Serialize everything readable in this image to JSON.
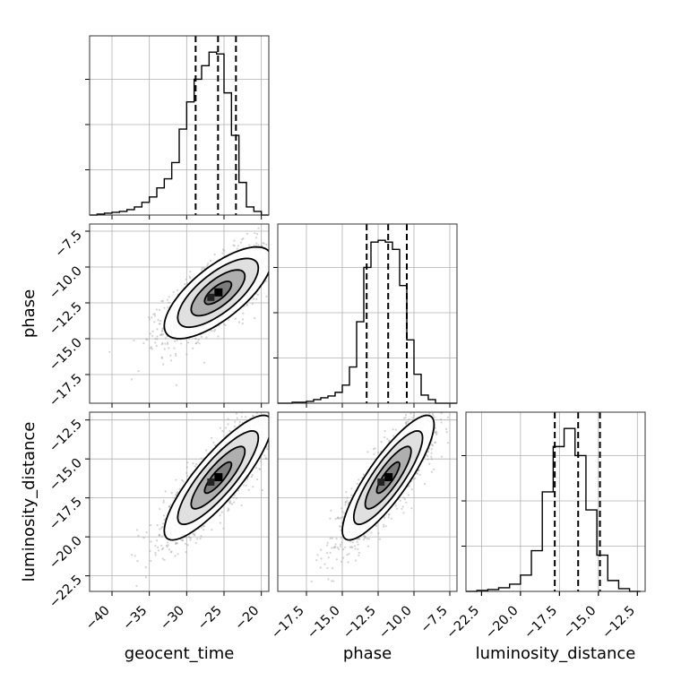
{
  "chart_data": {
    "type": "corner",
    "parameters": [
      {
        "name": "geocent_time",
        "range": [
          -43,
          -19
        ],
        "ticks": [
          -40,
          -35,
          -30,
          -25,
          -20
        ],
        "tick_labels": [
          "−40",
          "−35",
          "−30",
          "−25",
          "−20"
        ],
        "quantiles": [
          -28.8,
          -25.8,
          -23.4
        ],
        "hist_bins": [
          -43.0,
          -42.0,
          -41.0,
          -40.0,
          -39.0,
          -38.0,
          -37.0,
          -36.0,
          -35.0,
          -34.0,
          -33.0,
          -32.0,
          -31.0,
          -30.0,
          -29.0,
          -28.0,
          -27.0,
          -26.0,
          -25.0,
          -24.0,
          -23.0,
          -22.0,
          -21.0,
          -20.0,
          -19.0
        ],
        "hist_counts": [
          0,
          1,
          2,
          3,
          4,
          6,
          9,
          14,
          20,
          30,
          40,
          58,
          95,
          125,
          150,
          165,
          180,
          178,
          135,
          88,
          36,
          9,
          4,
          0
        ]
      },
      {
        "name": "phase",
        "range": [
          -19.5,
          -7.0
        ],
        "ticks": [
          -17.5,
          -15.0,
          -12.5,
          -10.0,
          -7.5
        ],
        "tick_labels": [
          "−17.5",
          "−15.0",
          "−12.5",
          "−10.0",
          "−7.5"
        ],
        "quantiles": [
          -13.3,
          -11.8,
          -10.5
        ],
        "hist_bins": [
          -19.5,
          -19.0,
          -18.5,
          -18.0,
          -17.5,
          -17.0,
          -16.5,
          -16.0,
          -15.5,
          -15.0,
          -14.5,
          -14.0,
          -13.5,
          -13.0,
          -12.5,
          -12.0,
          -11.5,
          -11.0,
          -10.5,
          -10.0,
          -9.5,
          -9.0,
          -8.5,
          -8.0,
          -7.5,
          -7.0
        ],
        "hist_counts": [
          0,
          0,
          1,
          1,
          2,
          4,
          6,
          8,
          12,
          20,
          40,
          90,
          150,
          178,
          180,
          178,
          170,
          130,
          70,
          32,
          9,
          4,
          0,
          0,
          0
        ]
      },
      {
        "name": "luminosity_distance",
        "range": [
          -23.5,
          -12.0
        ],
        "ticks": [
          -22.5,
          -20.0,
          -17.5,
          -15.0,
          -12.5
        ],
        "tick_labels": [
          "−22.5",
          "−20.0",
          "−17.5",
          "−15.0",
          "−12.5"
        ],
        "quantiles": [
          -17.8,
          -16.3,
          -14.9
        ],
        "hist_bins": [
          -23.5,
          -22.8,
          -22.1,
          -21.4,
          -20.7,
          -20.0,
          -19.3,
          -18.6,
          -17.9,
          -17.2,
          -16.5,
          -15.8,
          -15.1,
          -14.4,
          -13.7,
          -13.0,
          -12.3
        ],
        "hist_counts": [
          0,
          1,
          2,
          4,
          8,
          18,
          45,
          110,
          160,
          180,
          150,
          90,
          40,
          12,
          3,
          0
        ]
      }
    ],
    "pairs": [
      {
        "row": 1,
        "col": 0,
        "x": "geocent_time",
        "y": "phase",
        "mean": [
          -25.8,
          -11.8
        ],
        "sd": [
          3.6,
          1.6
        ],
        "corr": 0.72
      },
      {
        "row": 2,
        "col": 0,
        "x": "geocent_time",
        "y": "luminosity_distance",
        "mean": [
          -25.8,
          -16.2
        ],
        "sd": [
          3.6,
          2.0
        ],
        "corr": 0.85
      },
      {
        "row": 2,
        "col": 1,
        "x": "phase",
        "y": "luminosity_distance",
        "mean": [
          -11.8,
          -16.2
        ],
        "sd": [
          1.6,
          2.0
        ],
        "corr": 0.85
      }
    ],
    "xlabels": [
      "geocent_time",
      "phase",
      "luminosity_distance"
    ],
    "ylabels": [
      "",
      "phase",
      "luminosity_distance"
    ],
    "contour_levels": [
      0.5,
      1.0,
      1.5,
      2.0
    ],
    "grid": true,
    "colors": {
      "points": "#9e9e9e",
      "lines": "#000000",
      "grid": "#b0b0b0"
    }
  }
}
